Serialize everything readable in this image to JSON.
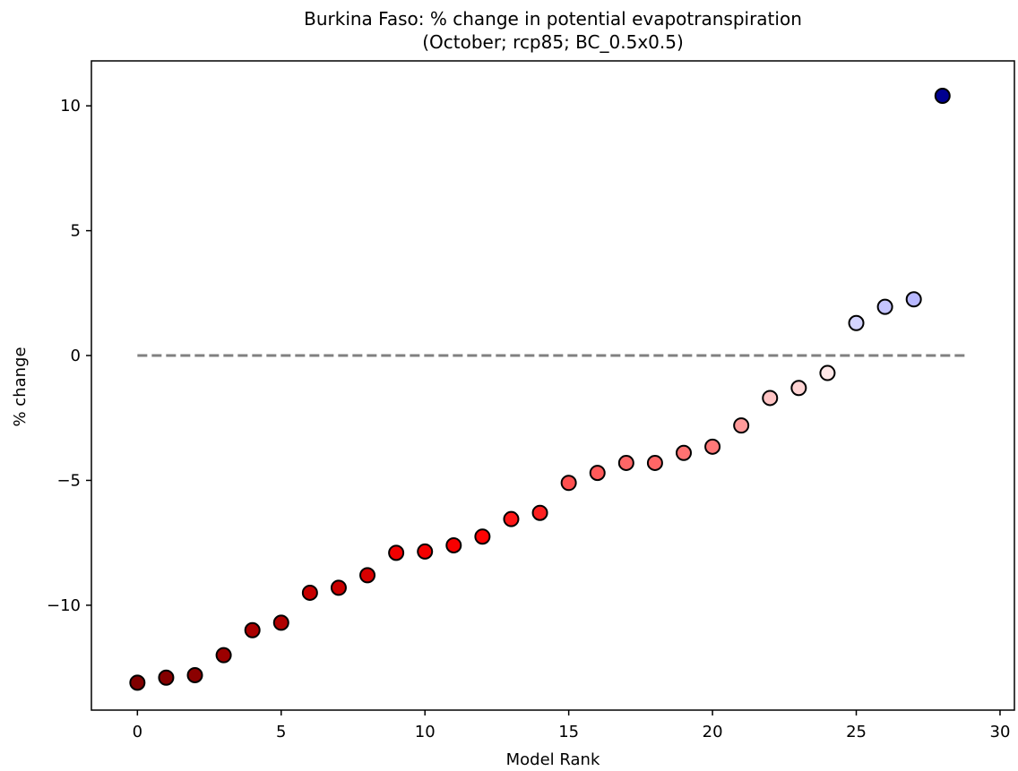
{
  "chart_data": {
    "type": "scatter",
    "title": "Burkina Faso: % change in potential evapotranspiration",
    "subtitle": "(October; rcp85; BC_0.5x0.5)",
    "xlabel": "Model Rank",
    "ylabel": "% change",
    "xlim": [
      -1.6,
      30.5
    ],
    "ylim": [
      -14.2,
      11.8
    ],
    "xticks": [
      0,
      5,
      10,
      15,
      20,
      25,
      30
    ],
    "xtick_labels": [
      "0",
      "5",
      "10",
      "15",
      "20",
      "25",
      "30"
    ],
    "yticks": [
      10,
      5,
      0,
      -5,
      -10
    ],
    "ytick_labels": [
      "10",
      "5",
      "0",
      "−5",
      "−10"
    ],
    "grid": false,
    "legend": "none",
    "reference_line": {
      "y": 0,
      "x_range": [
        0,
        28.8
      ],
      "style": "dashed",
      "color": "#808080"
    },
    "x": [
      0,
      1,
      2,
      3,
      4,
      5,
      6,
      7,
      8,
      9,
      10,
      11,
      12,
      13,
      14,
      15,
      16,
      17,
      18,
      19,
      20,
      21,
      22,
      23,
      24,
      25,
      26,
      27,
      28
    ],
    "values": [
      -13.1,
      -12.9,
      -12.8,
      -12.0,
      -11.0,
      -10.7,
      -9.5,
      -9.3,
      -8.8,
      -7.9,
      -7.85,
      -7.6,
      -7.25,
      -6.55,
      -6.3,
      -5.1,
      -4.7,
      -4.3,
      -4.3,
      -3.9,
      -3.65,
      -2.8,
      -1.7,
      -1.3,
      -0.7,
      1.3,
      1.95,
      2.25,
      10.4
    ],
    "colors": [
      "#800000",
      "#840000",
      "#8b0000",
      "#9b0000",
      "#aa0000",
      "#b00000",
      "#c60000",
      "#ca0000",
      "#d80000",
      "#f20000",
      "#f40000",
      "#f80000",
      "#ff0404",
      "#ff1818",
      "#ff2020",
      "#ff5050",
      "#ff5a5a",
      "#ff6666",
      "#ff6666",
      "#ff7272",
      "#ff7878",
      "#ff9a9a",
      "#ffc4c4",
      "#ffd4d4",
      "#ffe8e8",
      "#d4d4ff",
      "#c4c4ff",
      "#b8b8ff",
      "#000090"
    ]
  }
}
